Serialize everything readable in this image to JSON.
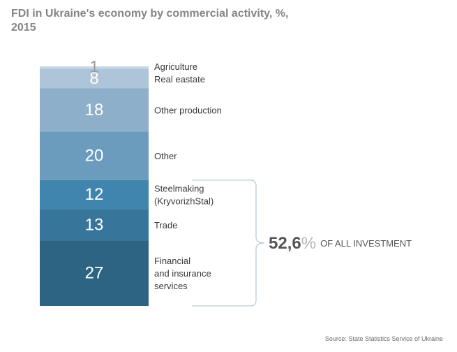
{
  "title": "FDI in Ukraine's economy by commercial activity, %, 2015",
  "source": "Source: State Statistics Service of Ukraine",
  "chart_data": {
    "type": "bar",
    "stacked": true,
    "categories": [
      "Agriculture",
      "Real eastate",
      "Other production",
      "Other",
      "Steelmaking (KryvorizhStal)",
      "Trade",
      "Financial and insurance services"
    ],
    "label_lines": [
      [
        "Agriculture"
      ],
      [
        "Real eastate"
      ],
      [
        "Other production"
      ],
      [
        "Other"
      ],
      [
        "Steelmaking",
        "(KryvorizhStal)"
      ],
      [
        "Trade"
      ],
      [
        "Financial",
        "and insurance",
        "services"
      ]
    ],
    "values": [
      1,
      8,
      18,
      20,
      12,
      13,
      27
    ],
    "value_labels": [
      "1",
      "8",
      "18",
      "20",
      "12",
      "13",
      "27"
    ],
    "colors": [
      "#c9d7e4",
      "#aec4d8",
      "#8eafca",
      "#6b9bbd",
      "#3f85ad",
      "#37759a",
      "#2e6483"
    ],
    "bracket": {
      "categories": [
        "Steelmaking (KryvorizhStal)",
        "Trade",
        "Financial and insurance services"
      ],
      "value": "52,6",
      "unit": "%",
      "text": "OF ALL INVESTMENT"
    }
  }
}
